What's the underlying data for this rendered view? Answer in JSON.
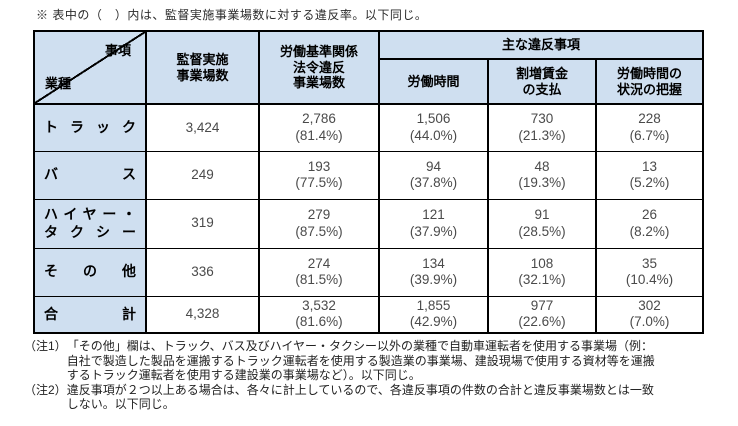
{
  "top_note": "※ 表中の（　）内は、監督実施事業場数に対する違反率。以下同じ。",
  "colors": {
    "header_bg": "#cfdff0",
    "border": "#000000",
    "data_text": "#4a4a4a"
  },
  "table": {
    "header": {
      "corner_top": "事項",
      "corner_bottom": "業種",
      "inspected": "監督実施\n事業場数",
      "violation": "労働基準関係\n法令違反\n事業場数",
      "main_group": "主な違反事項",
      "sub": [
        "労働時間",
        "割増賃金\nの支払",
        "労働時間の\n状況の把握"
      ]
    },
    "rows": [
      {
        "label": "トラック",
        "inspected": "3,424",
        "violation": "2,786\n(81.4%)",
        "hours": "1,506\n(44.0%)",
        "premium": "730\n(21.3%)",
        "grasp": "228\n(6.7%)"
      },
      {
        "label": "バス",
        "inspected": "249",
        "violation": "193\n(77.5%)",
        "hours": "94\n(37.8%)",
        "premium": "48\n(19.3%)",
        "grasp": "13\n(5.2%)"
      },
      {
        "label": "ハイヤー・\nタクシー",
        "inspected": "319",
        "violation": "279\n(87.5%)",
        "hours": "121\n(37.9%)",
        "premium": "91\n(28.5%)",
        "grasp": "26\n(8.2%)"
      },
      {
        "label": "その他",
        "inspected": "336",
        "violation": "274\n(81.5%)",
        "hours": "134\n(39.9%)",
        "premium": "108\n(32.1%)",
        "grasp": "35\n(10.4%)"
      },
      {
        "label": "合計",
        "inspected": "4,328",
        "violation": "3,532\n(81.6%)",
        "hours": "1,855\n(42.9%)",
        "premium": "977\n(22.6%)",
        "grasp": "302\n(7.0%)"
      }
    ]
  },
  "footnotes": [
    {
      "label": "（注1）",
      "text": "「その他」欄は、トラック、バス及びハイヤー・タクシー以外の業種で自動車運転者を使用する事業場（例：\n自社で製造した製品を運搬するトラック運転者を使用する製造業の事業場、建設現場で使用する資材等を運搬\nするトラック運転者を使用する建設業の事業場など）。以下同じ。"
    },
    {
      "label": "（注2）",
      "text": "違反事項が２つ以上ある場合は、各々に計上しているので、各違反事項の件数の合計と違反事業場数とは一致\nしない。以下同じ。"
    }
  ]
}
